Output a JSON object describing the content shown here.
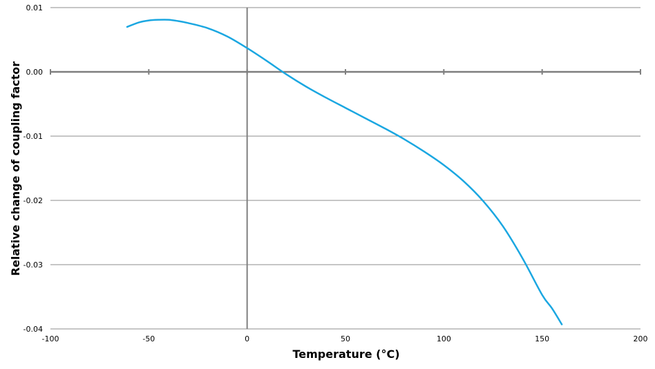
{
  "chart_data": {
    "type": "line",
    "xlabel": "Temperature (°C)",
    "ylabel": "Relative change of coupling factor",
    "xlim": [
      -100,
      200
    ],
    "ylim": [
      -0.04,
      0.01
    ],
    "x_ticks": [
      "-100",
      "-50",
      "0",
      "50",
      "100",
      "150",
      "200"
    ],
    "y_ticks": [
      "0.01",
      "0.00",
      "-0.01",
      "-0.02",
      "-0.03",
      "-0.04"
    ],
    "grid": "horizontal",
    "legend": "none",
    "series": [
      {
        "color": "#1ba7e1",
        "x": [
          -61,
          -55,
          -50,
          -45,
          -40,
          -35,
          -30,
          -20,
          -10,
          0,
          10,
          20,
          30,
          40,
          50,
          60,
          70,
          80,
          90,
          100,
          110,
          120,
          130,
          140,
          150,
          155,
          160
        ],
        "y": [
          0.007,
          0.0077,
          0.008,
          0.0081,
          0.0081,
          0.0079,
          0.0076,
          0.0068,
          0.0055,
          0.0037,
          0.0017,
          -0.0004,
          -0.0023,
          -0.004,
          -0.0056,
          -0.0072,
          -0.0088,
          -0.0105,
          -0.0124,
          -0.0145,
          -0.017,
          -0.0201,
          -0.024,
          -0.029,
          -0.0347,
          -0.0368,
          -0.0393
        ]
      }
    ]
  },
  "colors": {
    "grid": "#8c8c8c",
    "axis": "#7f7f7f",
    "line": "#1ba7e1"
  }
}
